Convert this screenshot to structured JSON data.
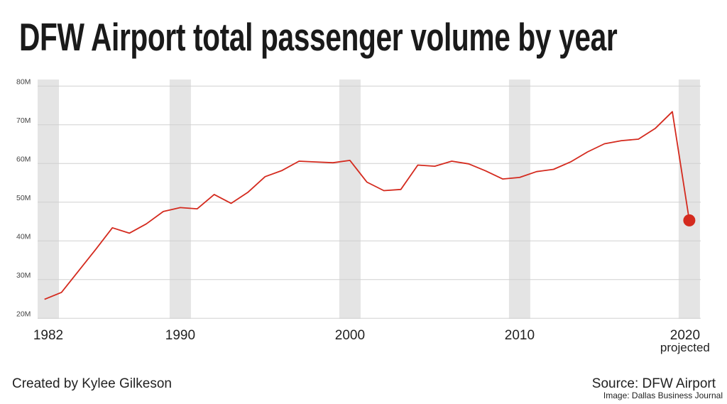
{
  "chart_data": {
    "type": "line",
    "title": "DFW Airport total passenger volume by year",
    "x": [
      1982,
      1983,
      1984,
      1985,
      1986,
      1987,
      1988,
      1989,
      1990,
      1991,
      1992,
      1993,
      1994,
      1995,
      1996,
      1997,
      1998,
      1999,
      2000,
      2001,
      2002,
      2003,
      2004,
      2005,
      2006,
      2007,
      2008,
      2009,
      2010,
      2011,
      2012,
      2013,
      2014,
      2015,
      2016,
      2017,
      2018,
      2019,
      2020
    ],
    "values_millions": [
      24.9,
      26.7,
      32.2,
      37.7,
      43.4,
      42.0,
      44.4,
      47.6,
      48.6,
      48.3,
      52.0,
      49.7,
      52.6,
      56.6,
      58.2,
      60.6,
      60.4,
      60.2,
      60.8,
      55.2,
      53.0,
      53.3,
      59.6,
      59.3,
      60.6,
      59.9,
      58.1,
      56.0,
      56.4,
      57.9,
      58.5,
      60.4,
      63.0,
      65.1,
      65.9,
      66.3,
      69.1,
      73.4,
      45.3
    ],
    "highlight_point": {
      "x": 2020,
      "label": "projected"
    },
    "ylim": [
      20,
      80
    ],
    "y_ticks": [
      "20M",
      "30M",
      "40M",
      "50M",
      "60M",
      "70M",
      "80M"
    ],
    "y_tick_values": [
      20,
      30,
      40,
      50,
      60,
      70,
      80
    ],
    "x_ticks": [
      {
        "year": 1982,
        "label": "1982"
      },
      {
        "year": 1990,
        "label": "1990"
      },
      {
        "year": 2000,
        "label": "2000"
      },
      {
        "year": 2010,
        "label": "2010"
      },
      {
        "year": 2020,
        "label": "2020",
        "sublabel": "projected"
      }
    ],
    "shaded_years": [
      1982,
      1990,
      2000,
      2010,
      2020
    ],
    "grid": true,
    "line_color": "#d42a1e",
    "band_color": "#e4e4e4",
    "grid_color": "#d0d0d0"
  },
  "footer": {
    "created_by": "Created by Kylee Gilkeson",
    "source": "Source: DFW Airport",
    "image_credit": "Image: Dallas Business Journal"
  }
}
